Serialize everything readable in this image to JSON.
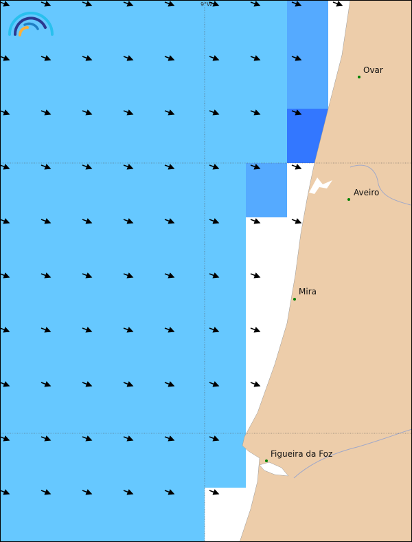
{
  "map": {
    "grid_labels": {
      "lon": "9°W"
    },
    "colors": {
      "sea_low": "#66c8ff",
      "sea_mid": "#55aaff",
      "sea_high": "#3377ff",
      "land": "#edcdaa",
      "city_dot": "#008000",
      "arrow": "#000000"
    },
    "cities": [
      {
        "name": "Ovar"
      },
      {
        "name": "Aveiro"
      },
      {
        "name": "Mira"
      },
      {
        "name": "Figueira da Foz"
      }
    ],
    "logo": "rainbow-arc-logo",
    "arrow_icon": "wind-direction-arrow-icon"
  }
}
